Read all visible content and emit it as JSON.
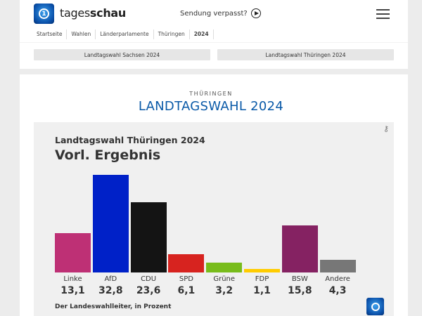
{
  "header": {
    "brand_light": "tages",
    "brand_bold": "schau",
    "missed": "Sendung verpasst?",
    "menu_icon": "hamburger-icon"
  },
  "breadcrumb": [
    "Startseite",
    "Wahlen",
    "Länderparlamente",
    "Thüringen",
    "2024"
  ],
  "tabs": [
    "Landtagswahl Sachsen 2024",
    "Landtagswahl Thüringen 2024"
  ],
  "page": {
    "kicker": "THÜRINGEN",
    "headline": "LANDTAGSWAHL 2024"
  },
  "chart_data": {
    "type": "bar",
    "title": "Landtagswahl Thüringen 2024",
    "subtitle": "Vorl. Ergebnis",
    "source": "Der Landeswahlleiter, in Prozent",
    "categories": [
      "Linke",
      "AfD",
      "CDU",
      "SPD",
      "Grüne",
      "FDP",
      "BSW",
      "Andere"
    ],
    "values": [
      13.1,
      32.8,
      23.6,
      6.1,
      3.2,
      1.1,
      15.8,
      4.3
    ],
    "value_labels": [
      "13,1",
      "32,8",
      "23,6",
      "6,1",
      "3,2",
      "1,1",
      "15,8",
      "4,3"
    ],
    "colors": [
      "#be3075",
      "#0021c8",
      "#141414",
      "#d7231f",
      "#78bc1b",
      "#ffcc00",
      "#852262",
      "#777777"
    ]
  }
}
